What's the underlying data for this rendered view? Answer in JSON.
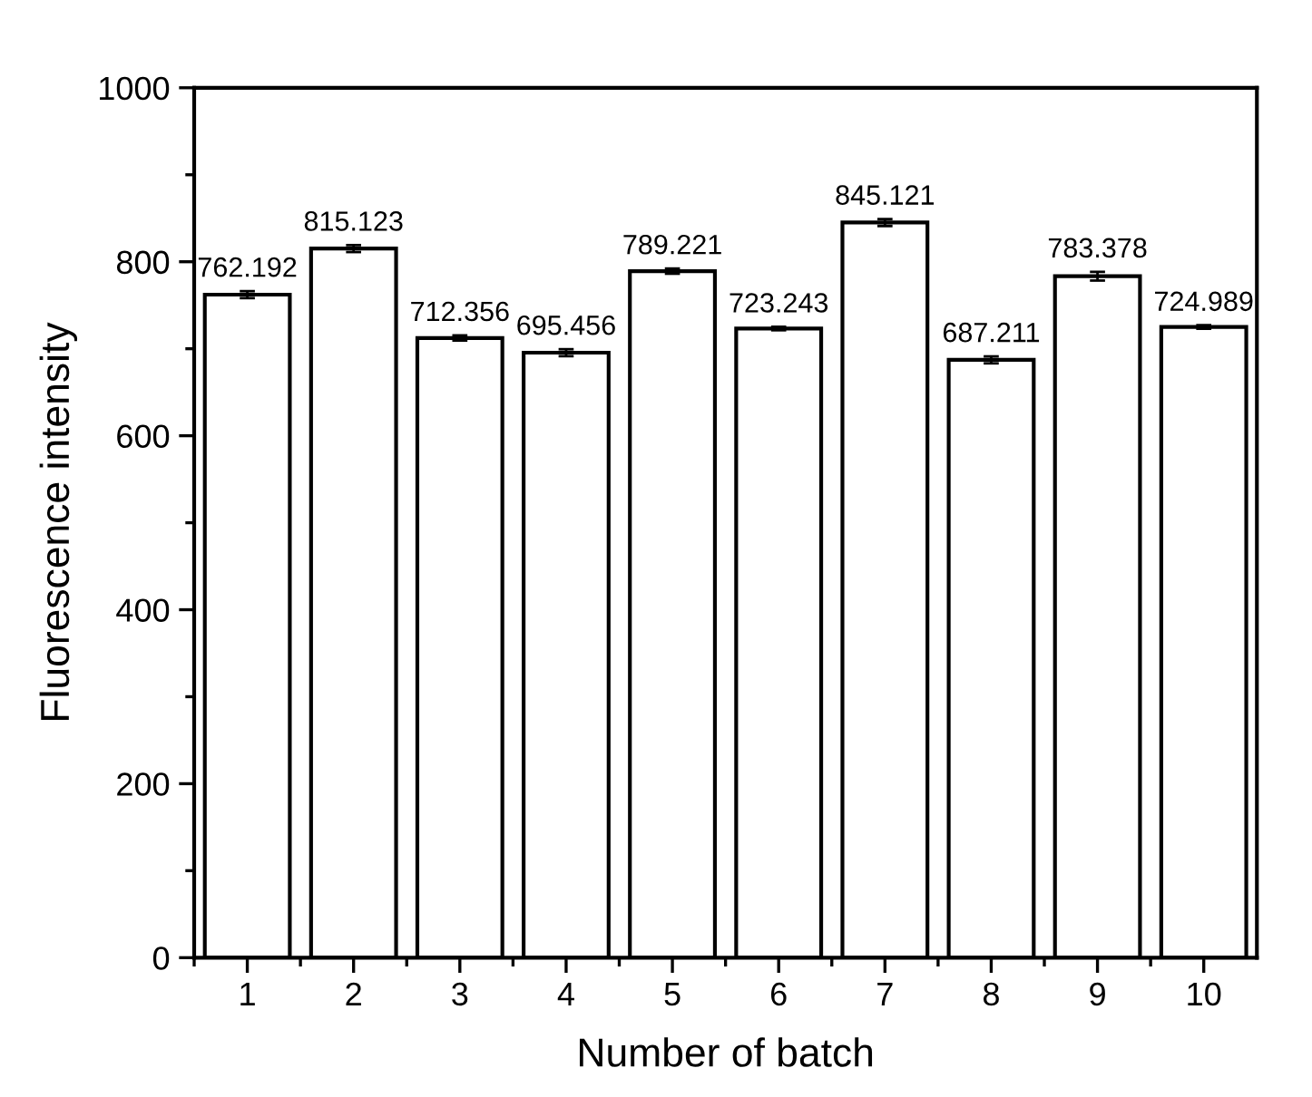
{
  "chart_data": {
    "type": "bar",
    "xlabel": "Number of batch",
    "ylabel": "Fluorescence intensity",
    "categories": [
      "1",
      "2",
      "3",
      "4",
      "5",
      "6",
      "7",
      "8",
      "9",
      "10"
    ],
    "values": [
      762.192,
      815.123,
      712.356,
      695.456,
      789.221,
      723.243,
      845.121,
      687.211,
      783.378,
      724.989
    ],
    "errors": [
      4,
      4,
      3,
      4,
      3,
      2,
      4,
      4,
      5,
      2
    ],
    "color": "#ffffff",
    "data_labels": true,
    "ylim": [
      0,
      1000
    ],
    "yticks": [
      0,
      200,
      400,
      600,
      800,
      1000
    ],
    "grid": false,
    "legend": false
  }
}
